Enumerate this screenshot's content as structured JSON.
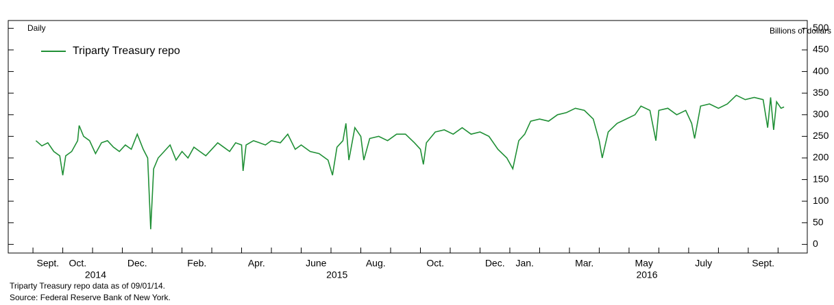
{
  "chart_data": {
    "type": "line",
    "unit_label": "Billions of dollars",
    "frequency_label": "Daily",
    "notes": [
      "Triparty Treasury repo data as of 09/01/14.",
      "Source: Federal Reserve Bank of New York."
    ],
    "legend": "upper left",
    "series": [
      {
        "name": "Triparty Treasury repo",
        "color": "#1f8f35",
        "x": [
          0.1,
          0.3,
          0.5,
          0.7,
          0.9,
          1.0,
          1.1,
          1.3,
          1.5,
          1.55,
          1.7,
          1.9,
          2.1,
          2.3,
          2.5,
          2.7,
          2.9,
          3.1,
          3.3,
          3.5,
          3.7,
          3.85,
          3.95,
          4.05,
          4.2,
          4.4,
          4.6,
          4.8,
          5.0,
          5.2,
          5.4,
          5.6,
          5.8,
          6.0,
          6.2,
          6.4,
          6.6,
          6.8,
          7.0,
          7.05,
          7.15,
          7.4,
          7.6,
          7.8,
          8.0,
          8.3,
          8.55,
          8.8,
          9.0,
          9.3,
          9.6,
          9.9,
          10.05,
          10.2,
          10.4,
          10.5,
          10.6,
          10.8,
          11.0,
          11.1,
          11.3,
          11.6,
          11.9,
          12.2,
          12.5,
          12.8,
          13.0,
          13.1,
          13.2,
          13.5,
          13.8,
          14.1,
          14.4,
          14.7,
          15.0,
          15.3,
          15.6,
          15.9,
          16.1,
          16.3,
          16.5,
          16.7,
          17.0,
          17.3,
          17.6,
          17.9,
          18.2,
          18.5,
          18.8,
          19.0,
          19.1,
          19.3,
          19.6,
          19.9,
          20.2,
          20.4,
          20.7,
          20.9,
          21.0,
          21.3,
          21.6,
          21.9,
          22.1,
          22.2,
          22.4,
          22.7,
          23.0,
          23.3,
          23.6,
          23.9,
          24.2,
          24.5,
          24.65,
          24.75,
          24.85,
          24.95,
          25.1,
          25.2
        ],
        "values": [
          240,
          228,
          235,
          215,
          205,
          160,
          205,
          215,
          240,
          275,
          250,
          240,
          210,
          235,
          240,
          225,
          215,
          230,
          220,
          255,
          220,
          200,
          35,
          175,
          200,
          215,
          230,
          195,
          215,
          200,
          225,
          215,
          205,
          220,
          235,
          225,
          215,
          235,
          230,
          170,
          230,
          240,
          235,
          230,
          240,
          235,
          255,
          220,
          230,
          215,
          210,
          195,
          160,
          225,
          240,
          280,
          195,
          270,
          250,
          195,
          245,
          250,
          240,
          255,
          255,
          235,
          220,
          185,
          235,
          260,
          265,
          255,
          270,
          255,
          260,
          250,
          220,
          200,
          175,
          240,
          255,
          285,
          290,
          285,
          300,
          305,
          315,
          310,
          290,
          240,
          200,
          260,
          280,
          290,
          300,
          320,
          310,
          240,
          310,
          315,
          300,
          310,
          280,
          245,
          320,
          325,
          315,
          325,
          345,
          335,
          340,
          335,
          270,
          340,
          265,
          330,
          315,
          318
        ]
      }
    ],
    "xlim": [
      -0.83,
      25.98
    ],
    "xticks": [
      0,
      1,
      2,
      3,
      4,
      5,
      6,
      7,
      8,
      9,
      10,
      11,
      12,
      13,
      14,
      15,
      16,
      17,
      18,
      19,
      20,
      21,
      22,
      23,
      24,
      25
    ],
    "xtick_labels": [
      {
        "value": 0.5,
        "label": "Sept."
      },
      {
        "value": 1.5,
        "label": "Oct."
      },
      {
        "value": 3.5,
        "label": "Dec."
      },
      {
        "value": 5.5,
        "label": "Feb."
      },
      {
        "value": 7.5,
        "label": "Apr."
      },
      {
        "value": 9.5,
        "label": "June"
      },
      {
        "value": 11.5,
        "label": "Aug."
      },
      {
        "value": 13.5,
        "label": "Oct."
      },
      {
        "value": 15.5,
        "label": "Dec."
      },
      {
        "value": 16.5,
        "label": "Jan."
      },
      {
        "value": 18.5,
        "label": "Mar."
      },
      {
        "value": 20.5,
        "label": "May"
      },
      {
        "value": 22.5,
        "label": "July"
      },
      {
        "value": 24.5,
        "label": "Sept."
      }
    ],
    "year_labels": [
      {
        "value": 2.1,
        "label": "2014"
      },
      {
        "value": 10.2,
        "label": "2015"
      },
      {
        "value": 20.6,
        "label": "2016"
      }
    ],
    "ylim": [
      -20,
      518
    ],
    "yticks": [
      0,
      50,
      100,
      150,
      200,
      250,
      300,
      350,
      400,
      450,
      500
    ]
  }
}
